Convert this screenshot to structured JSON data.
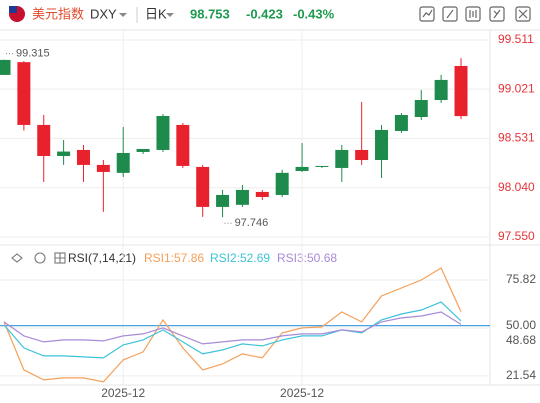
{
  "header": {
    "name": "美元指数",
    "symbol": "DXY",
    "period": "日K",
    "price": 98.753,
    "change": -0.423,
    "change_pct": "-0.43%"
  },
  "chart_data": [
    {
      "type": "candlestick",
      "categories": [
        null,
        null,
        null,
        null,
        null,
        null,
        "2025-12",
        null,
        null,
        null,
        null,
        null,
        null,
        null,
        null,
        "2025-12",
        null,
        null,
        null,
        null,
        null,
        null,
        null,
        null
      ],
      "open": [
        99.163,
        99.29,
        98.665,
        98.356,
        98.416,
        98.267,
        98.188,
        98.396,
        98.416,
        98.665,
        98.247,
        97.849,
        97.87,
        97.998,
        97.968,
        98.207,
        98.247,
        98.237,
        98.416,
        98.316,
        98.605,
        98.744,
        98.913,
        99.252
      ],
      "high": [
        99.315,
        99.3,
        98.765,
        98.515,
        98.466,
        98.316,
        98.645,
        98.416,
        98.774,
        98.684,
        98.267,
        98.018,
        98.068,
        98.018,
        98.218,
        98.485,
        98.257,
        98.466,
        98.894,
        98.665,
        98.784,
        99.013,
        99.163,
        99.33
      ],
      "low": [
        99.163,
        98.61,
        98.098,
        98.267,
        98.098,
        97.8,
        98.147,
        98.376,
        98.396,
        98.237,
        97.75,
        97.746,
        97.849,
        97.918,
        97.948,
        98.197,
        98.237,
        98.098,
        98.267,
        98.137,
        98.585,
        98.714,
        98.884,
        98.723
      ],
      "close": [
        99.312,
        98.665,
        98.356,
        98.4,
        98.267,
        98.197,
        98.386,
        98.426,
        98.754,
        98.257,
        97.849,
        97.968,
        98.018,
        97.948,
        98.188,
        98.247,
        98.257,
        98.416,
        98.316,
        98.615,
        98.764,
        98.913,
        99.113,
        98.753
      ],
      "up_color": "#1e8a4c",
      "down_color": "#e8222c",
      "ylim": [
        97.47,
        99.61
      ],
      "yticks": [
        99.511,
        99.021,
        98.531,
        {
          "value": 98.04,
          "label": "98.040"
        },
        {
          "value": 97.55,
          "label": "97.550"
        }
      ],
      "annotations": [
        {
          "value": 99.315,
          "index": 0
        },
        {
          "value": 97.746,
          "index": 11
        }
      ],
      "grid": true
    },
    {
      "type": "line",
      "title": "RSI(7,14,21)",
      "legend_labels": [
        "RSI1:57.86",
        "RSI2:52.69",
        "RSI3:50.68"
      ],
      "series": [
        {
          "name": "RSI1",
          "color": "#f5a05a",
          "values": [
            52.08,
            24.94,
            19.29,
            20.42,
            20.42,
            18.16,
            30.6,
            35.12,
            53.21,
            37.38,
            24.94,
            28.33,
            33.99,
            31.73,
            45.86,
            48.69,
            49.25,
            57.73,
            52.08,
            66.78,
            71.3,
            75.82,
            82.6,
            57.86
          ]
        },
        {
          "name": "RSI2",
          "color": "#3cc3d8",
          "values": [
            50.38,
            37.38,
            32.86,
            32.86,
            32.29,
            31.73,
            39.08,
            41.9,
            47.56,
            40.77,
            33.99,
            36.25,
            39.64,
            38.51,
            41.9,
            44.16,
            44.16,
            47.56,
            45.86,
            53.21,
            56.6,
            58.86,
            63.38,
            52.69
          ]
        },
        {
          "name": "RSI3",
          "color": "#a98ad8",
          "values": [
            52.08,
            44.16,
            40.77,
            41.9,
            41.9,
            41.34,
            44.16,
            45.29,
            48.69,
            44.16,
            39.64,
            40.77,
            41.9,
            41.9,
            44.16,
            45.29,
            45.29,
            47.56,
            46.43,
            52.08,
            54.34,
            55.47,
            57.73,
            50.68
          ]
        }
      ],
      "ylim": [
        16.4,
        84.3
      ],
      "yticks": [
        75.82,
        {
          "value": 50,
          "label": "50.00"
        },
        {
          "value": 48.68,
          "label": "48.68"
        },
        21.54
      ],
      "reference_line": 50,
      "reference_color": "#4aa3e0"
    }
  ]
}
